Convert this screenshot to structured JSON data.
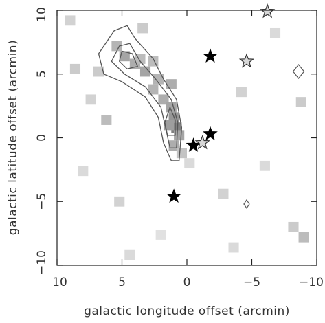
{
  "chart_data": {
    "type": "heatmap",
    "title": "",
    "xlabel": "galactic longitude offset (arcmin)",
    "ylabel": "galactic latitude offset (arcmin)",
    "xlim": [
      10,
      -10
    ],
    "ylim": [
      -10,
      10
    ],
    "x_ticks": [
      10,
      5,
      0,
      -5,
      -10
    ],
    "x_tick_labels": [
      "10",
      "5",
      "0",
      "−5",
      "−10"
    ],
    "y_ticks": [
      -10,
      -5,
      0,
      5,
      10
    ],
    "y_tick_labels": [
      "−10",
      "−5",
      "0",
      "5",
      "10"
    ],
    "grid": false,
    "colormap": "gray_reversed",
    "colors": {
      "frame": "#222222",
      "contour": "#555555",
      "filled_star": "#000000",
      "open_star_fill": "#d8d8d8"
    },
    "heatmap_cells": [
      {
        "l": 1.2,
        "b": 4.2,
        "v": 0.55
      },
      {
        "l": 2.2,
        "b": 4.6,
        "v": 0.5
      },
      {
        "l": 3.2,
        "b": 5.2,
        "v": 0.6
      },
      {
        "l": 4.0,
        "b": 5.8,
        "v": 0.55
      },
      {
        "l": 4.8,
        "b": 6.4,
        "v": 0.6
      },
      {
        "l": 3.6,
        "b": 6.2,
        "v": 0.45
      },
      {
        "l": 2.6,
        "b": 3.8,
        "v": 0.5
      },
      {
        "l": 1.8,
        "b": 3.0,
        "v": 0.55
      },
      {
        "l": 1.2,
        "b": 2.4,
        "v": 0.6
      },
      {
        "l": 1.0,
        "b": 1.6,
        "v": 0.7
      },
      {
        "l": 0.8,
        "b": 0.8,
        "v": 0.85
      },
      {
        "l": 1.4,
        "b": 1.0,
        "v": 0.65
      },
      {
        "l": 0.6,
        "b": 0.2,
        "v": 0.6
      },
      {
        "l": 1.0,
        "b": -0.6,
        "v": 0.55
      },
      {
        "l": 0.4,
        "b": -1.2,
        "v": 0.4
      },
      {
        "l": -0.2,
        "b": -2.0,
        "v": 0.25
      },
      {
        "l": 2.6,
        "b": 6.0,
        "v": 0.45
      },
      {
        "l": 5.4,
        "b": 7.2,
        "v": 0.5
      },
      {
        "l": 6.8,
        "b": 5.2,
        "v": 0.35
      },
      {
        "l": 7.4,
        "b": 3.0,
        "v": 0.3
      },
      {
        "l": 8.6,
        "b": 5.4,
        "v": 0.35
      },
      {
        "l": 6.2,
        "b": 1.4,
        "v": 0.45
      },
      {
        "l": 3.4,
        "b": 8.6,
        "v": 0.35
      },
      {
        "l": 5.2,
        "b": -5.0,
        "v": 0.3
      },
      {
        "l": -2.8,
        "b": -4.4,
        "v": 0.3
      },
      {
        "l": -4.2,
        "b": 3.6,
        "v": 0.3
      },
      {
        "l": -8.2,
        "b": -7.0,
        "v": 0.35
      },
      {
        "l": -9.0,
        "b": -7.8,
        "v": 0.45
      },
      {
        "l": -8.8,
        "b": 2.8,
        "v": 0.35
      },
      {
        "l": 9.0,
        "b": 9.2,
        "v": 0.3
      },
      {
        "l": -3.6,
        "b": -8.6,
        "v": 0.25
      },
      {
        "l": 4.4,
        "b": -9.2,
        "v": 0.25
      },
      {
        "l": -6.8,
        "b": 8.2,
        "v": 0.25
      },
      {
        "l": 8.0,
        "b": -2.6,
        "v": 0.25
      },
      {
        "l": -6.0,
        "b": -2.2,
        "v": 0.25
      },
      {
        "l": 2.0,
        "b": -7.6,
        "v": 0.2
      }
    ],
    "contours": [
      {
        "level": "outer",
        "points": [
          [
            0.6,
            -1.8
          ],
          [
            0.4,
            0.8
          ],
          [
            0.8,
            3.0
          ],
          [
            1.8,
            4.6
          ],
          [
            2.6,
            6.2
          ],
          [
            4.0,
            7.8
          ],
          [
            4.6,
            8.8
          ],
          [
            5.6,
            8.4
          ],
          [
            6.8,
            6.6
          ],
          [
            6.4,
            5.0
          ],
          [
            5.0,
            4.4
          ],
          [
            3.2,
            3.2
          ],
          [
            2.2,
            1.6
          ],
          [
            1.8,
            -0.4
          ],
          [
            1.2,
            -1.8
          ],
          [
            0.6,
            -1.8
          ]
        ]
      },
      {
        "level": "middle",
        "points": [
          [
            0.8,
            -0.8
          ],
          [
            0.7,
            1.2
          ],
          [
            1.2,
            3.0
          ],
          [
            2.4,
            4.6
          ],
          [
            3.6,
            6.0
          ],
          [
            4.4,
            7.4
          ],
          [
            5.2,
            7.2
          ],
          [
            5.8,
            6.0
          ],
          [
            4.8,
            5.0
          ],
          [
            3.2,
            4.0
          ],
          [
            2.0,
            2.4
          ],
          [
            1.6,
            0.6
          ],
          [
            1.3,
            -0.8
          ],
          [
            0.8,
            -0.8
          ]
        ]
      },
      {
        "level": "inner",
        "points": [
          [
            0.9,
            0.2
          ],
          [
            0.9,
            1.4
          ],
          [
            1.3,
            2.4
          ],
          [
            1.7,
            1.2
          ],
          [
            1.5,
            0.2
          ],
          [
            0.9,
            0.2
          ]
        ]
      },
      {
        "level": "inner",
        "points": [
          [
            3.8,
            5.6
          ],
          [
            4.2,
            6.6
          ],
          [
            5.0,
            6.8
          ],
          [
            5.2,
            6.0
          ],
          [
            4.6,
            5.4
          ],
          [
            3.8,
            5.6
          ]
        ]
      }
    ],
    "filled_stars": [
      {
        "l": -1.8,
        "b": 6.4
      },
      {
        "l": -1.8,
        "b": 0.3
      },
      {
        "l": -0.5,
        "b": -0.6
      },
      {
        "l": 1.0,
        "b": -4.6
      }
    ],
    "open_stars": [
      {
        "l": -6.2,
        "b": 9.9
      },
      {
        "l": -4.6,
        "b": 6.0
      },
      {
        "l": -1.2,
        "b": -0.4
      }
    ],
    "open_diamonds": [
      {
        "l": -8.6,
        "b": 5.2,
        "size": "large"
      },
      {
        "l": -4.6,
        "b": -5.2,
        "size": "small"
      }
    ]
  }
}
